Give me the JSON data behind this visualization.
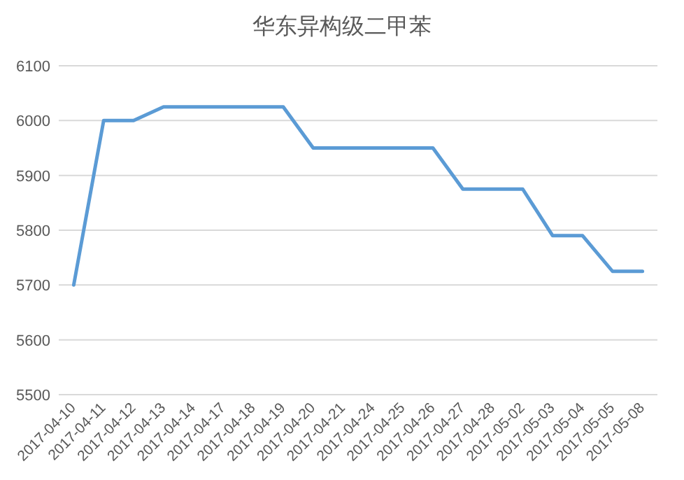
{
  "chart_data": {
    "type": "line",
    "title": "华东异构级二甲苯",
    "categories": [
      "2017-04-10",
      "2017-04-11",
      "2017-04-12",
      "2017-04-13",
      "2017-04-14",
      "2017-04-17",
      "2017-04-18",
      "2017-04-19",
      "2017-04-20",
      "2017-04-21",
      "2017-04-24",
      "2017-04-25",
      "2017-04-26",
      "2017-04-27",
      "2017-04-28",
      "2017-05-02",
      "2017-05-03",
      "2017-05-04",
      "2017-05-05",
      "2017-05-08"
    ],
    "series": [
      {
        "color": "#5b9bd5",
        "values": [
          5700,
          6000,
          6000,
          6025,
          6025,
          6025,
          6025,
          6025,
          5950,
          5950,
          5950,
          5950,
          5950,
          5875,
          5875,
          5875,
          5790,
          5790,
          5725,
          5725
        ]
      }
    ],
    "ylim": [
      5500,
      6100
    ],
    "yticks": [
      5500,
      5600,
      5700,
      5800,
      5900,
      6000,
      6100
    ],
    "grid": "y"
  }
}
